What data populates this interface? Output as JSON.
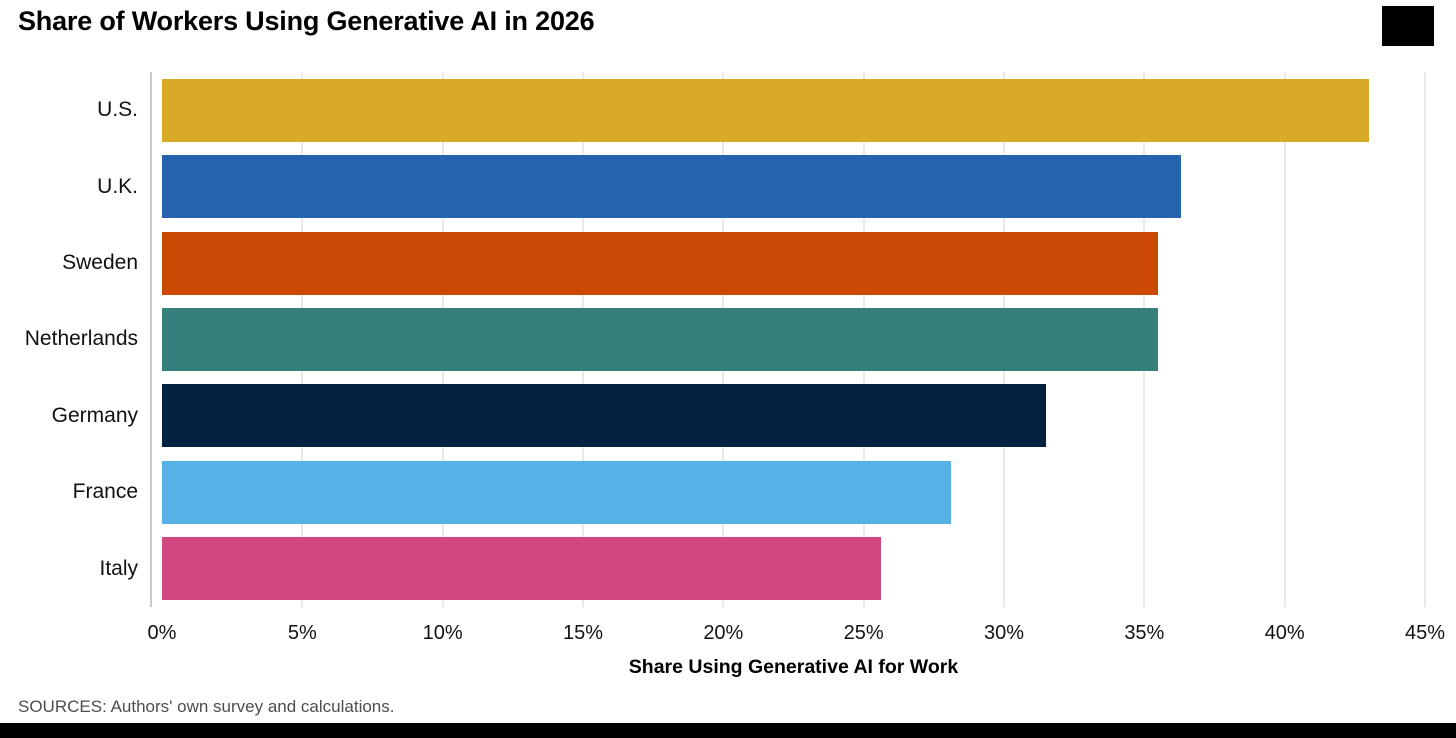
{
  "header": {
    "title": "Share of Workers Using Generative AI in 2026",
    "logo": "black-rectangle-logo"
  },
  "chart_data": {
    "type": "bar",
    "orientation": "horizontal",
    "title": "Share of Workers Using Generative AI in 2026",
    "categories": [
      "U.S.",
      "U.K.",
      "Sweden",
      "Netherlands",
      "Germany",
      "France",
      "Italy"
    ],
    "values": [
      43.0,
      36.3,
      35.5,
      35.5,
      31.5,
      28.1,
      25.6
    ],
    "bar_colors": [
      "#D9A928",
      "#2563AE",
      "#CC4905",
      "#35807B",
      "#042240",
      "#56B1E7",
      "#D1477F"
    ],
    "xlabel": "Share Using Generative AI for Work",
    "ylabel": "",
    "xlim": [
      0,
      45
    ],
    "x_ticks": [
      0,
      5,
      10,
      15,
      20,
      25,
      30,
      35,
      40,
      45
    ],
    "x_tick_labels": [
      "0%",
      "5%",
      "10%",
      "15%",
      "20%",
      "25%",
      "30%",
      "35%",
      "40%",
      "45%"
    ],
    "grid": "vertical-light-gray",
    "legend": "none",
    "gridline_color": "#e9e9e9",
    "axis_line_color": "#c9c9c9"
  },
  "footer": {
    "source": "SOURCES: Authors' own survey and calculations."
  }
}
